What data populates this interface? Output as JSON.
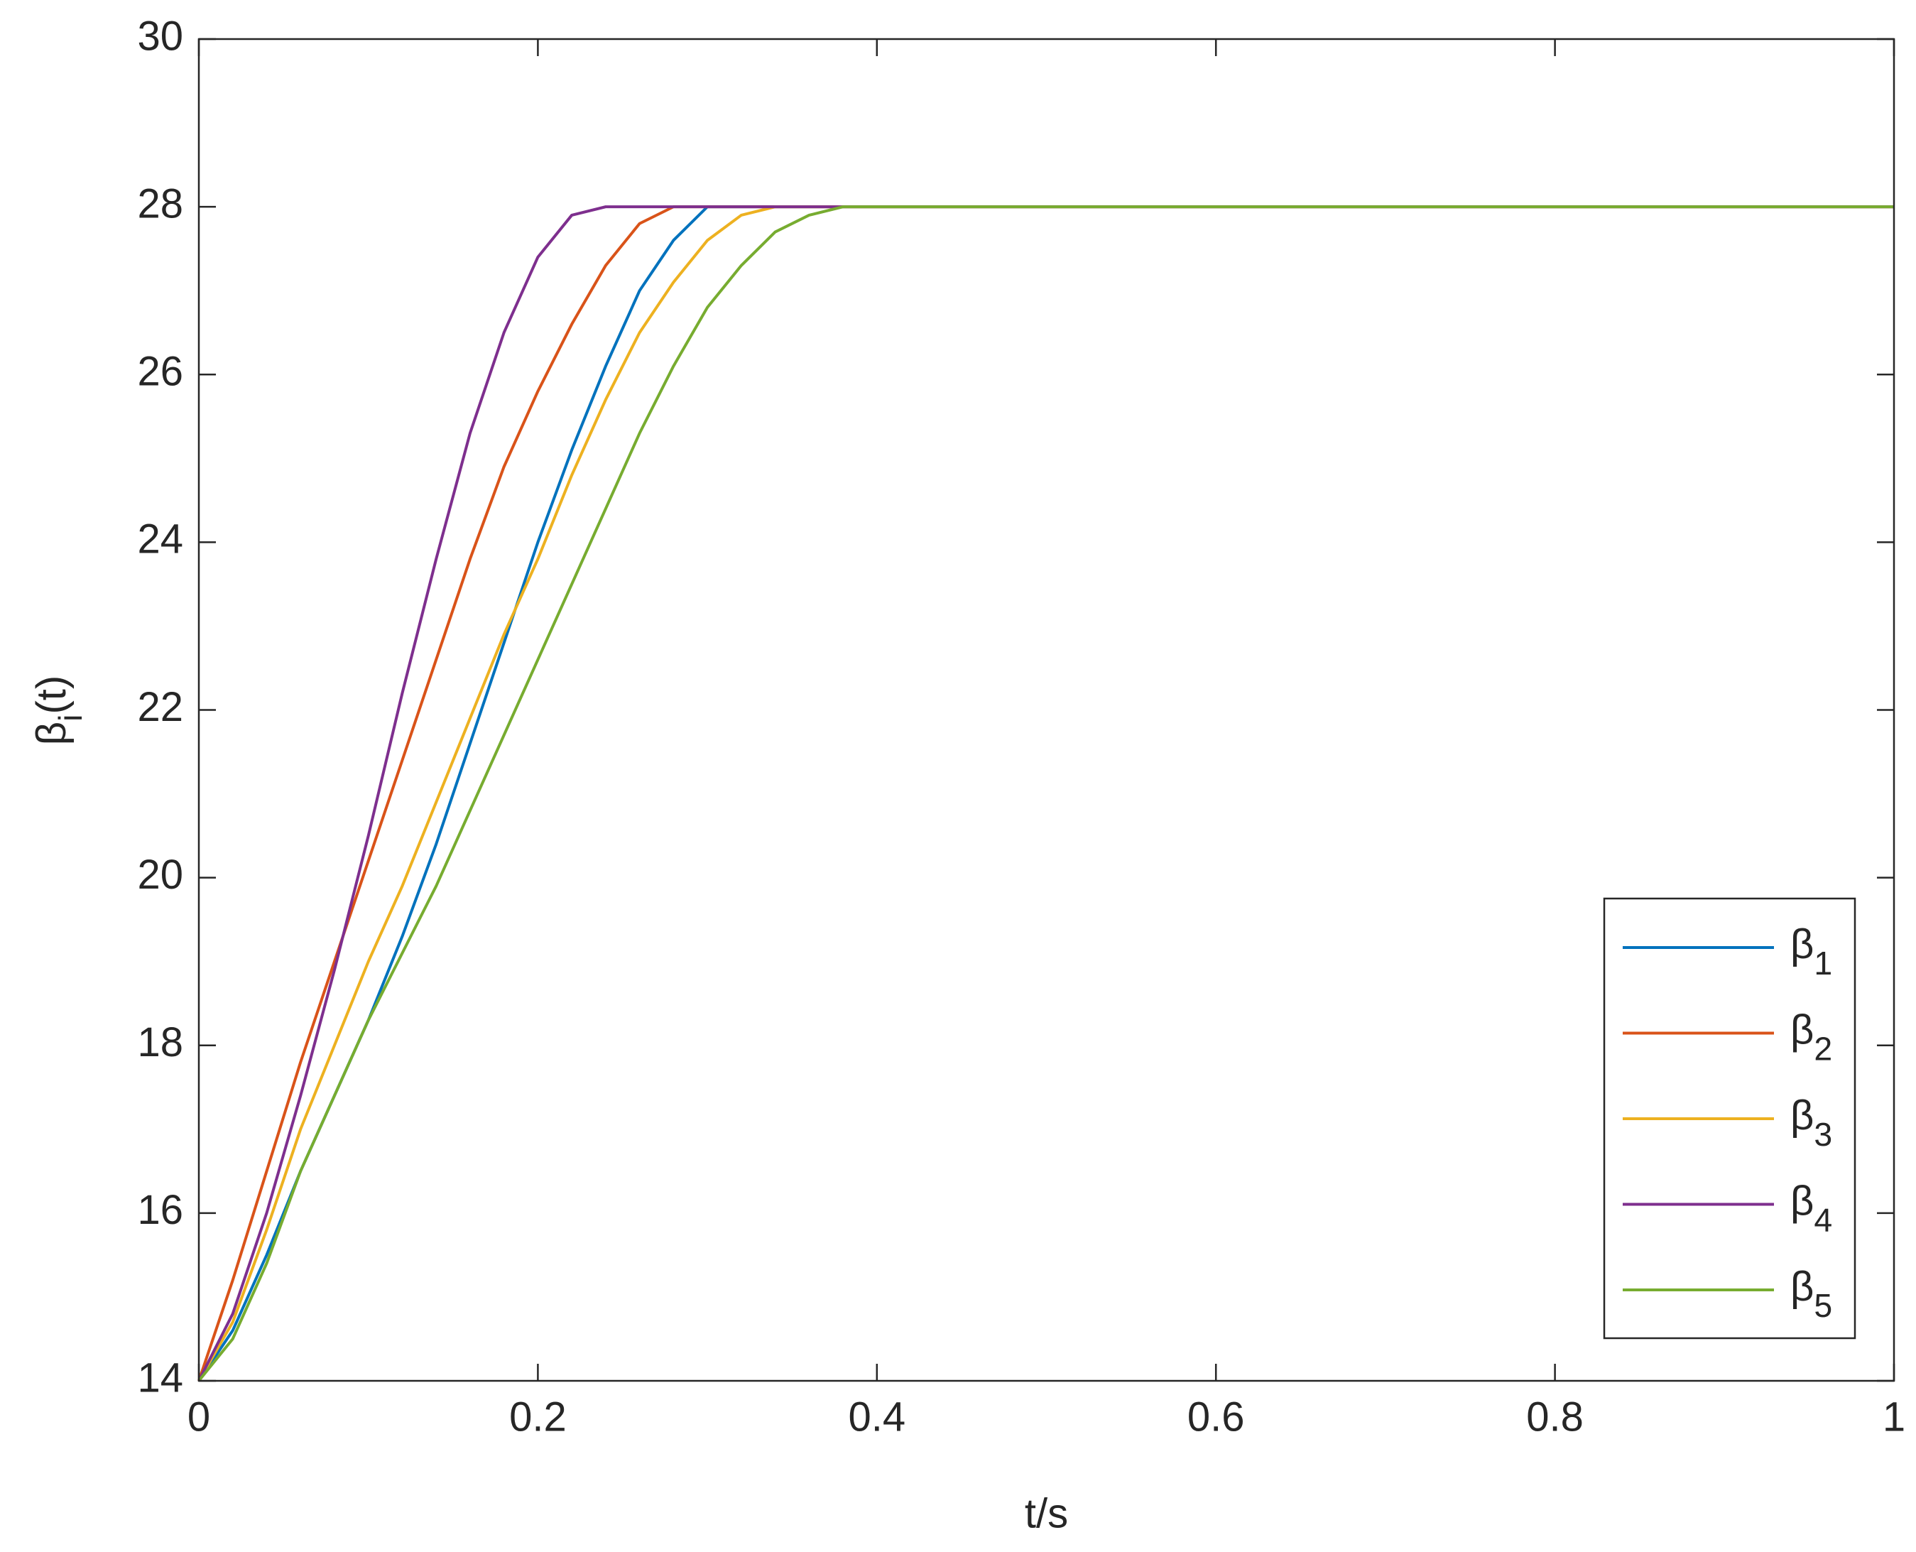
{
  "chart_data": {
    "type": "line",
    "x_label": "t/s",
    "y_label": "βi(t)",
    "x": [
      0,
      0.02,
      0.04,
      0.06,
      0.08,
      0.1,
      0.12,
      0.14,
      0.16,
      0.18,
      0.2,
      0.22,
      0.24,
      0.26,
      0.28,
      0.3,
      0.32,
      0.34,
      0.36,
      0.38,
      0.4,
      1
    ],
    "series": [
      {
        "name": "β1",
        "color": "#0072BD",
        "values": [
          14,
          14.6,
          15.5,
          16.5,
          17.4,
          18.3,
          19.3,
          20.4,
          21.6,
          22.8,
          24.0,
          25.1,
          26.1,
          27.0,
          27.6,
          28,
          28,
          28,
          28,
          28,
          28,
          28
        ]
      },
      {
        "name": "β2",
        "color": "#D95319",
        "values": [
          14,
          15.2,
          16.5,
          17.8,
          19.0,
          20.2,
          21.4,
          22.6,
          23.8,
          24.9,
          25.8,
          26.6,
          27.3,
          27.8,
          28,
          28,
          28,
          28,
          28,
          28,
          28,
          28
        ]
      },
      {
        "name": "β3",
        "color": "#EDB120",
        "values": [
          14,
          14.7,
          15.8,
          17.0,
          18.0,
          19.0,
          19.9,
          20.9,
          21.9,
          22.9,
          23.8,
          24.8,
          25.7,
          26.5,
          27.1,
          27.6,
          27.9,
          28,
          28,
          28,
          28,
          28
        ]
      },
      {
        "name": "β4",
        "color": "#7E2F8E",
        "values": [
          14,
          14.8,
          16.0,
          17.4,
          18.9,
          20.5,
          22.2,
          23.8,
          25.3,
          26.5,
          27.4,
          27.9,
          28,
          28,
          28,
          28,
          28,
          28,
          28,
          28,
          28,
          28
        ]
      },
      {
        "name": "β5",
        "color": "#77AC30",
        "values": [
          14,
          14.5,
          15.4,
          16.5,
          17.4,
          18.3,
          19.1,
          19.9,
          20.8,
          21.7,
          22.6,
          23.5,
          24.4,
          25.3,
          26.1,
          26.8,
          27.3,
          27.7,
          27.9,
          28,
          28,
          28
        ]
      }
    ],
    "xlim": [
      0,
      1
    ],
    "xticks": [
      0,
      0.2,
      0.4,
      0.6,
      0.8,
      1
    ],
    "ylim": [
      14,
      30
    ],
    "yticks": [
      14,
      16,
      18,
      20,
      22,
      24,
      26,
      28,
      30
    ],
    "grid": false,
    "legend": "lower right"
  }
}
